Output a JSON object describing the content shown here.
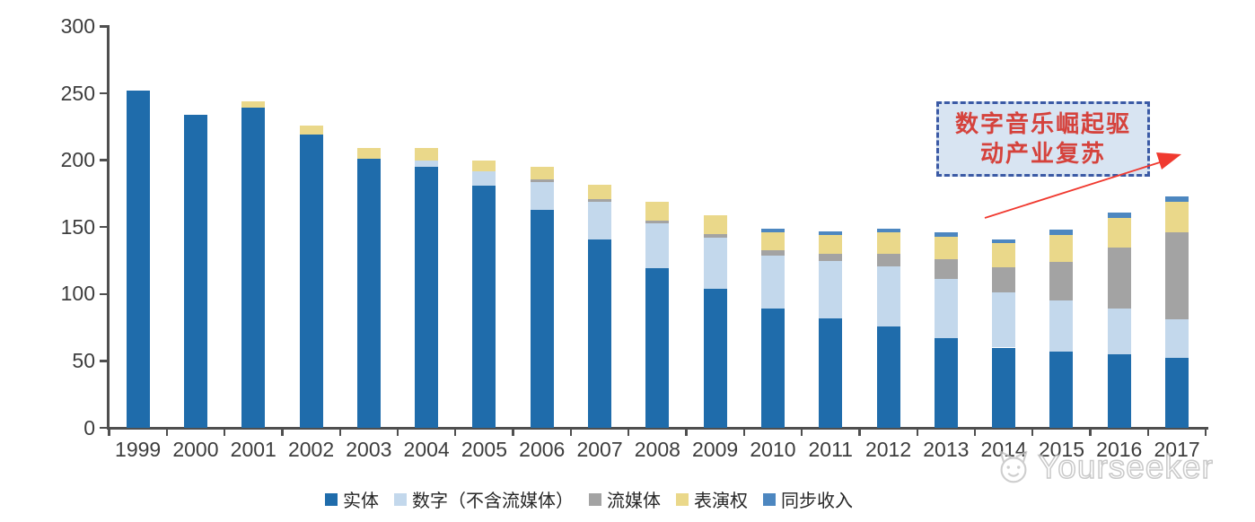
{
  "chart_data": {
    "type": "bar",
    "stacked": true,
    "categories": [
      "1999",
      "2000",
      "2001",
      "2002",
      "2003",
      "2004",
      "2005",
      "2006",
      "2007",
      "2008",
      "2009",
      "2010",
      "2011",
      "2012",
      "2013",
      "2014",
      "2015",
      "2016",
      "2017"
    ],
    "series": [
      {
        "name": "实体",
        "color": "#1f6cab",
        "values": [
          252,
          234,
          239,
          219,
          201,
          195,
          181,
          163,
          141,
          119,
          104,
          89,
          82,
          76,
          67,
          60,
          57,
          55,
          52
        ]
      },
      {
        "name": "数字（不含流媒体）",
        "color": "#c3d8ec",
        "values": [
          0,
          0,
          0,
          0,
          0,
          5,
          11,
          21,
          28,
          34,
          38,
          40,
          43,
          45,
          44,
          41,
          38,
          34,
          29
        ]
      },
      {
        "name": "流媒体",
        "color": "#a3a3a3",
        "values": [
          0,
          0,
          0,
          0,
          0,
          0,
          0,
          2,
          2,
          2,
          3,
          4,
          5,
          9,
          15,
          19,
          29,
          46,
          65
        ]
      },
      {
        "name": "表演权",
        "color": "#ead88a",
        "values": [
          0,
          0,
          5,
          7,
          8,
          9,
          8,
          9,
          11,
          14,
          14,
          13,
          14,
          16,
          17,
          18,
          20,
          22,
          23
        ]
      },
      {
        "name": "同步收入",
        "color": "#4d87c0",
        "values": [
          0,
          0,
          0,
          0,
          0,
          0,
          0,
          0,
          0,
          0,
          0,
          3,
          3,
          3,
          3,
          3,
          4,
          4,
          4
        ]
      }
    ],
    "ylim": [
      0,
      300
    ],
    "yticks": [
      0,
      50,
      100,
      150,
      200,
      250,
      300
    ],
    "grid": false,
    "legend_position": "bottom",
    "title": ""
  },
  "annotation": {
    "text": "数字音乐崛起驱动产业复苏",
    "lines": [
      "数字音乐崛起驱",
      "动产业复苏"
    ],
    "box_fill": "#d8e4f2",
    "border_color": "#3b5aa5",
    "text_color": "#d5423c",
    "arrow_color": "#f0392f"
  },
  "watermark": {
    "text": "Yourseeker",
    "icon": "cat-logo-icon"
  },
  "axis": {
    "line_color": "#4f4f4f",
    "label_color": "#3d3d3d"
  }
}
